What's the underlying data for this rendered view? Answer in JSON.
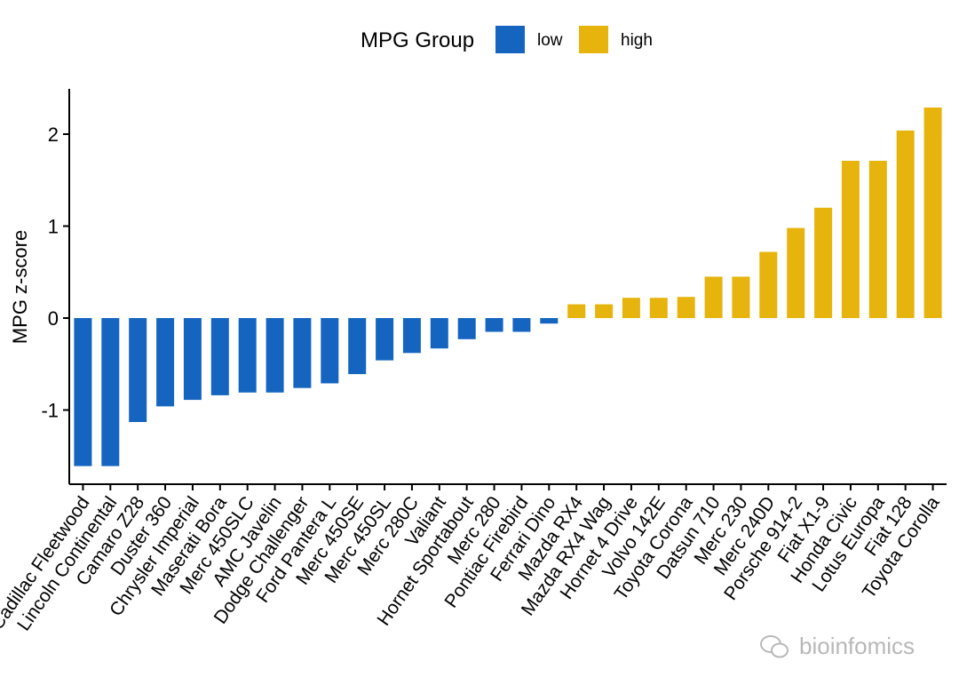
{
  "chart_data": {
    "type": "bar",
    "legend": {
      "title": "MPG Group",
      "position": "top",
      "entries": [
        {
          "name": "low",
          "color": "#1565c0"
        },
        {
          "name": "high",
          "color": "#e7b40e"
        }
      ]
    },
    "xlabel": "",
    "ylabel": "MPG z-score",
    "ylim": [
      -1.62,
      2.37
    ],
    "yticks": [
      -1,
      0,
      1,
      2
    ],
    "grid": false,
    "categories": [
      "Cadillac Fleetwood",
      "Lincoln Continental",
      "Camaro Z28",
      "Duster 360",
      "Chrysler Imperial",
      "Maserati Bora",
      "Merc 450SLC",
      "AMC Javelin",
      "Dodge Challenger",
      "Ford Pantera L",
      "Merc 450SE",
      "Merc 450SL",
      "Merc 280C",
      "Valiant",
      "Hornet Sportabout",
      "Merc 280",
      "Pontiac Firebird",
      "Ferrari Dino",
      "Mazda RX4",
      "Mazda RX4 Wag",
      "Hornet 4 Drive",
      "Volvo 142E",
      "Toyota Corona",
      "Datsun 710",
      "Merc 230",
      "Merc 240D",
      "Porsche 914-2",
      "Fiat X1-9",
      "Honda Civic",
      "Lotus Europa",
      "Fiat 128",
      "Toyota Corolla"
    ],
    "values": [
      -1.61,
      -1.61,
      -1.13,
      -0.96,
      -0.89,
      -0.84,
      -0.81,
      -0.81,
      -0.76,
      -0.71,
      -0.61,
      -0.46,
      -0.38,
      -0.33,
      -0.23,
      -0.15,
      -0.15,
      -0.06,
      0.15,
      0.15,
      0.22,
      0.22,
      0.23,
      0.45,
      0.45,
      0.72,
      0.98,
      1.2,
      1.71,
      1.71,
      2.04,
      2.29
    ],
    "groups": [
      "low",
      "low",
      "low",
      "low",
      "low",
      "low",
      "low",
      "low",
      "low",
      "low",
      "low",
      "low",
      "low",
      "low",
      "low",
      "low",
      "low",
      "low",
      "high",
      "high",
      "high",
      "high",
      "high",
      "high",
      "high",
      "high",
      "high",
      "high",
      "high",
      "high",
      "high",
      "high"
    ]
  },
  "watermark": "bioinfomics"
}
